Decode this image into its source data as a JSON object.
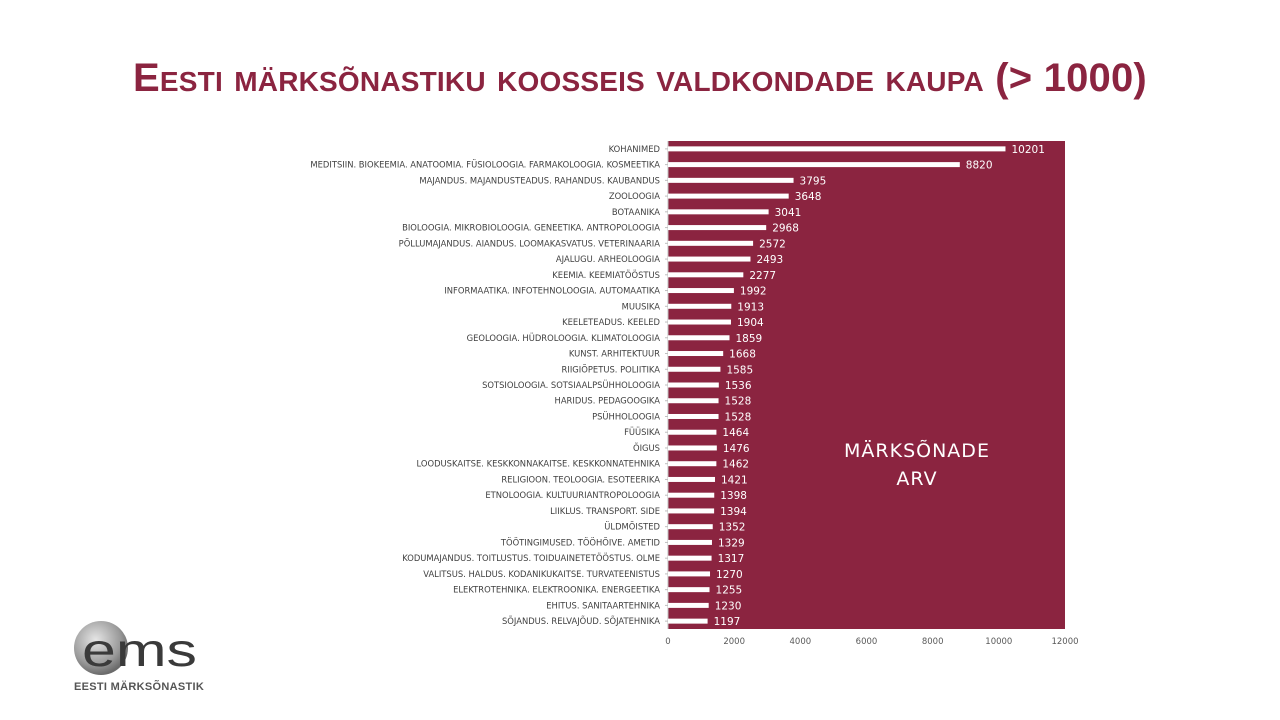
{
  "slide": {
    "title": "Eesti märksõnastiku koosseis valdkondade kaupa (> 1000)"
  },
  "logo": {
    "mark": "ems",
    "caption": "EESTI MÄRKSÕNASTIK"
  },
  "colors": {
    "title": "#8b2440",
    "plot_background": "#8b2440",
    "bars": "#ffffff",
    "value_labels": "#ffffff"
  },
  "chart_data": {
    "type": "bar",
    "orientation": "horizontal",
    "title": "",
    "xlabel": "",
    "ylabel": "",
    "xlim": [
      0,
      12000
    ],
    "x_ticks": [
      0,
      2000,
      4000,
      6000,
      8000,
      10000,
      12000
    ],
    "grid": false,
    "legend": {
      "position": "center-right",
      "entries": [
        "MÄRKSÕNADE",
        "ARV"
      ]
    },
    "categories": [
      "KOHANIMED",
      "MEDITSIIN. BIOKEEMIA. ANATOOMIA. FÜSIOLOOGIA. FARMAKOLOOGIA. KOSMEETIKA",
      "MAJANDUS. MAJANDUSTEADUS. RAHANDUS. KAUBANDUS",
      "ZOOLOOGIA",
      "BOTAANIKA",
      "BIOLOOGIA. MIKROBIOLOOGIA. GENEETIKA. ANTROPOLOOGIA",
      "PÕLLUMAJANDUS. AIANDUS. LOOMAKASVATUS. VETERINAARIA",
      "AJALUGU. ARHEOLOOGIA",
      "KEEMIA. KEEMIATÖÖSTUS",
      "INFORMAATIKA. INFOTEHNOLOOGIA. AUTOMAATIKA",
      "MUUSIKA",
      "KEELETEADUS. KEELED",
      "GEOLOOGIA. HÜDROLOOGIA. KLIMATOLOOGIA",
      "KUNST. ARHITEKTUUR",
      "RIIGIÕPETUS. POLIITIKA",
      "SOTSIOLOOGIA. SOTSIAALPSÜHHOLOOGIA",
      "HARIDUS. PEDAGOOGIKA",
      "PSÜHHOLOOGIA",
      "FÜÜSIKA",
      "ÕIGUS",
      "LOODUSKAITSE. KESKKONNAKAITSE. KESKKONNATEHNIKA",
      "RELIGIOON. TEOLOOGIA. ESOTEERIKA",
      "ETNOLOOGIA. KULTUURIANTROPOLOOGIA",
      "LIIKLUS. TRANSPORT. SIDE",
      "ÜLDMÕISTED",
      "TÖÖTINGIMUSED. TÖÖHÕIVE. AMETID",
      "KODUMAJANDUS. TOITLUSTUS. TOIDUAINETETÖÖSTUS. OLME",
      "VALITSUS. HALDUS. KODANIKUKAITSE. TURVATEENISTUS",
      "ELEKTROTEHNIKA. ELEKTROONIKA. ENERGEETIKA",
      "EHITUS. SANITAARTEHNIKA",
      "SÕJANDUS. RELVAJÕUD. SÕJATEHNIKA"
    ],
    "series": [
      {
        "values": [
          10201,
          8820,
          3795,
          3648,
          3041,
          2968,
          2572,
          2493,
          2277,
          1992,
          1913,
          1904,
          1859,
          1668,
          1585,
          1536,
          1528,
          1528,
          1464,
          1476,
          1462,
          1421,
          1398,
          1394,
          1352,
          1329,
          1317,
          1270,
          1255,
          1230,
          1197
        ]
      }
    ]
  }
}
